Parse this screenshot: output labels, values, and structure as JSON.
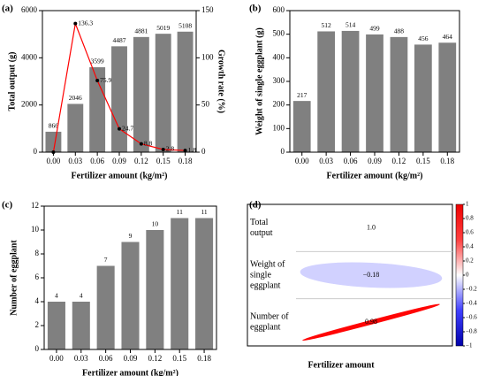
{
  "chart_data": [
    {
      "type": "bar",
      "panel_label": "(a)",
      "categories": [
        "0.00",
        "0.03",
        "0.06",
        "0.09",
        "0.12",
        "0.15",
        "0.18"
      ],
      "values": [
        866,
        2046,
        3599,
        4487,
        4881,
        5019,
        5108
      ],
      "color": "#808080",
      "ylim": [
        0,
        6000
      ],
      "yticks": [
        0,
        2000,
        4000,
        6000
      ],
      "line_values": [
        0,
        136.3,
        75.9,
        24.7,
        8.8,
        2.8,
        1.8
      ],
      "line_value_labels": [
        null,
        "136.3",
        "75.9",
        "24.7",
        "8.8",
        "2.8",
        "1.8"
      ],
      "line_color": "#ff0000",
      "line_axis": "y2",
      "y2lim": [
        0,
        150
      ],
      "y2ticks": [
        0,
        50,
        100,
        150
      ],
      "xlabel": "Fertilizer amount (kg/m²)",
      "ylabel": "Total output (g)",
      "y2label": "Growth rate (%)"
    },
    {
      "type": "bar",
      "panel_label": "(b)",
      "categories": [
        "0.00",
        "0.03",
        "0.06",
        "0.09",
        "0.12",
        "0.15",
        "0.18"
      ],
      "values": [
        217,
        512,
        514,
        499,
        488,
        456,
        464
      ],
      "color": "#808080",
      "ylim": [
        0,
        600
      ],
      "yticks": [
        0,
        100,
        200,
        300,
        400,
        500,
        600
      ],
      "xlabel": "Fertilizer amount (kg/m²)",
      "ylabel": "Weight of single eggplant (g)"
    },
    {
      "type": "bar",
      "panel_label": "(c)",
      "categories": [
        "0.00",
        "0.03",
        "0.06",
        "0.09",
        "0.12",
        "0.15",
        "0.18"
      ],
      "values": [
        4,
        4,
        7,
        9,
        10,
        11,
        11
      ],
      "color": "#808080",
      "ylim": [
        0,
        12
      ],
      "yticks": [
        0,
        2,
        4,
        6,
        8,
        10,
        12
      ],
      "xlabel": "Fertilizer amount (kg/m²)",
      "ylabel": "Number of eggplant"
    },
    {
      "type": "corrplot",
      "panel_label": "(d)",
      "rows": [
        [
          "Total",
          "output"
        ],
        [
          "Weight of",
          "single",
          "eggplant"
        ],
        [
          "Number of",
          "eggplant"
        ]
      ],
      "values": [
        1.0,
        -0.18,
        0.98
      ],
      "value_labels": [
        "1.0",
        "−0.18",
        "0.98"
      ],
      "clim": [
        -1,
        1
      ],
      "cticks": [
        1,
        0.8,
        0.6,
        0.4,
        0.2,
        0,
        {
          "value": -0.2,
          "label": "−0.2"
        },
        {
          "value": -0.4,
          "label": "−0.4"
        },
        {
          "value": -0.6,
          "label": "−0.6"
        },
        {
          "value": -0.8,
          "label": "−0.8"
        },
        {
          "value": -1,
          "label": "−1"
        }
      ],
      "xlabel": "Fertilizer amount"
    }
  ]
}
